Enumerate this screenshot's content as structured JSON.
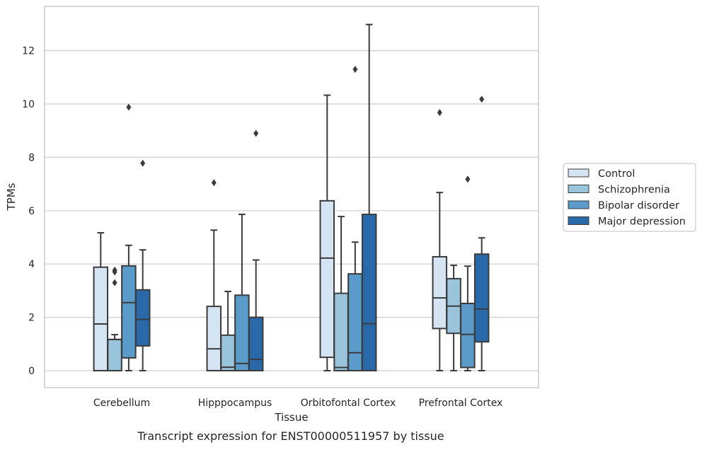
{
  "chart_data": {
    "type": "boxplot",
    "title": "",
    "caption": "Transcript expression for ENST00000511957 by tissue",
    "xlabel": "Tissue",
    "ylabel": "TPMs",
    "ylim": [
      -0.65,
      13.6
    ],
    "yticks": [
      0,
      2,
      4,
      6,
      8,
      10,
      12
    ],
    "grid": "horizontal",
    "legend_placement": "right",
    "categories": [
      "Cerebellum",
      "Hipppocampus",
      "Orbitofontal Cortex",
      "Prefrontal Cortex"
    ],
    "series": [
      {
        "name": "Control",
        "color": "#d4e4f2",
        "boxes": [
          {
            "whislo": 0,
            "q1": 0,
            "med": 1.75,
            "q3": 3.88,
            "whishi": 5.17,
            "fliers": []
          },
          {
            "whislo": 0,
            "q1": 0,
            "med": 0.82,
            "q3": 2.41,
            "whishi": 5.27,
            "fliers": [
              7.05
            ]
          },
          {
            "whislo": 0,
            "q1": 0.5,
            "med": 4.22,
            "q3": 6.37,
            "whishi": 10.33,
            "fliers": []
          },
          {
            "whislo": 0,
            "q1": 1.58,
            "med": 2.73,
            "q3": 4.27,
            "whishi": 6.68,
            "fliers": [
              9.68
            ]
          }
        ]
      },
      {
        "name": "Schizophrenia",
        "color": "#9ac3dc",
        "boxes": [
          {
            "whislo": 0,
            "q1": 0,
            "med": 1.17,
            "q3": 1.17,
            "whishi": 1.35,
            "fliers": [
              3.3,
              3.7,
              3.77
            ]
          },
          {
            "whislo": 0,
            "q1": 0,
            "med": 0.13,
            "q3": 1.33,
            "whishi": 2.97,
            "fliers": []
          },
          {
            "whislo": 0,
            "q1": 0,
            "med": 0.12,
            "q3": 2.9,
            "whishi": 5.78,
            "fliers": []
          },
          {
            "whislo": 0,
            "q1": 1.4,
            "med": 2.42,
            "q3": 3.45,
            "whishi": 3.95,
            "fliers": []
          }
        ]
      },
      {
        "name": "Bipolar disorder",
        "color": "#5b9bc9",
        "boxes": [
          {
            "whislo": 0,
            "q1": 0.48,
            "med": 2.55,
            "q3": 3.93,
            "whishi": 4.7,
            "fliers": [
              9.88
            ]
          },
          {
            "whislo": 0,
            "q1": 0,
            "med": 0.27,
            "q3": 2.83,
            "whishi": 5.86,
            "fliers": []
          },
          {
            "whislo": 0,
            "q1": 0,
            "med": 0.67,
            "q3": 3.63,
            "whishi": 4.82,
            "fliers": [
              11.3
            ]
          },
          {
            "whislo": 0,
            "q1": 0.12,
            "med": 1.36,
            "q3": 2.52,
            "whishi": 3.92,
            "fliers": [
              7.18
            ]
          }
        ]
      },
      {
        "name": "Major depression",
        "color": "#2a69a9",
        "boxes": [
          {
            "whislo": 0,
            "q1": 0.93,
            "med": 1.92,
            "q3": 3.03,
            "whishi": 4.53,
            "fliers": [
              7.78
            ]
          },
          {
            "whislo": 0,
            "q1": 0,
            "med": 0.42,
            "q3": 2.0,
            "whishi": 4.15,
            "fliers": [
              8.9
            ]
          },
          {
            "whislo": 0,
            "q1": 0,
            "med": 1.76,
            "q3": 5.86,
            "whishi": 12.98,
            "fliers": []
          },
          {
            "whislo": 0,
            "q1": 1.08,
            "med": 2.31,
            "q3": 4.37,
            "whishi": 4.98,
            "fliers": [
              10.18
            ]
          }
        ]
      }
    ]
  }
}
